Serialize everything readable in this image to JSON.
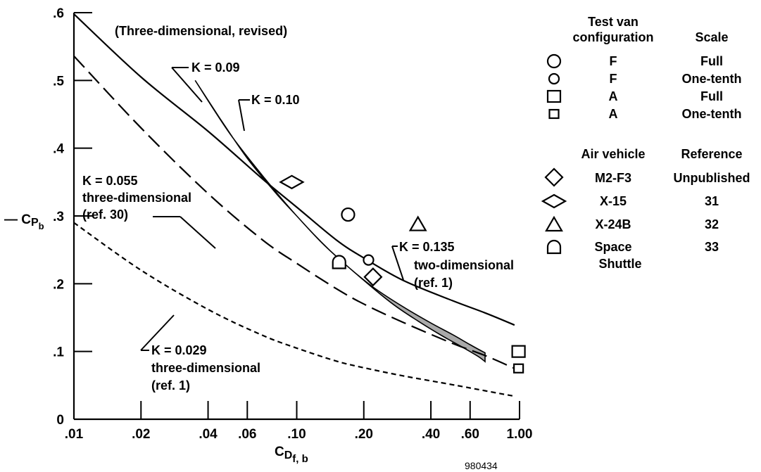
{
  "chart_data": {
    "type": "line",
    "x_scale": "log",
    "xlim": [
      0.01,
      1.0
    ],
    "ylim": [
      0,
      0.6
    ],
    "x_ticks": [
      0.01,
      0.02,
      0.04,
      0.06,
      0.1,
      0.2,
      0.4,
      0.6,
      1.0
    ],
    "x_tick_labels": [
      ".01",
      ".02",
      ".04",
      ".06",
      ".10",
      ".20",
      ".40",
      ".60",
      "1.00"
    ],
    "y_ticks": [
      0,
      0.1,
      0.2,
      0.3,
      0.4,
      0.5,
      0.6
    ],
    "y_tick_labels": [
      "0",
      ".1",
      ".2",
      ".3",
      ".4",
      ".5",
      ".6"
    ],
    "ylabel": {
      "prefix": "— C",
      "sub": "P",
      "subsub": "b"
    },
    "xlabel": {
      "main": "C",
      "sub": "D",
      "subsub": "f, b"
    },
    "series": [
      {
        "style": "solid",
        "x": [
          0.01,
          0.02,
          0.04,
          0.07,
          0.1,
          0.15,
          0.2,
          0.3,
          0.5,
          0.7,
          0.95
        ],
        "y": [
          0.598,
          0.505,
          0.425,
          0.355,
          0.313,
          0.265,
          0.238,
          0.205,
          0.175,
          0.157,
          0.139
        ]
      },
      {
        "style": "long-dash",
        "x": [
          0.01,
          0.02,
          0.04,
          0.07,
          0.1,
          0.15,
          0.2,
          0.3,
          0.5,
          0.7,
          0.95
        ],
        "y": [
          0.536,
          0.43,
          0.333,
          0.265,
          0.23,
          0.193,
          0.17,
          0.143,
          0.112,
          0.094,
          0.075
        ]
      },
      {
        "style": "short-dash",
        "x": [
          0.01,
          0.02,
          0.04,
          0.07,
          0.1,
          0.15,
          0.2,
          0.3,
          0.5,
          0.7,
          0.95
        ],
        "y": [
          0.29,
          0.22,
          0.162,
          0.124,
          0.105,
          0.086,
          0.076,
          0.064,
          0.051,
          0.042,
          0.034
        ]
      }
    ],
    "band": {
      "upper": {
        "x": [
          0.045,
          0.06,
          0.08,
          0.1,
          0.13,
          0.17,
          0.22,
          0.3,
          0.4,
          0.5,
          0.6,
          0.7
        ],
        "y": [
          0.445,
          0.385,
          0.335,
          0.3,
          0.26,
          0.225,
          0.195,
          0.166,
          0.142,
          0.125,
          0.11,
          0.098
        ]
      },
      "lower": {
        "x": [
          0.035,
          0.05,
          0.07,
          0.1,
          0.14,
          0.2,
          0.27,
          0.35,
          0.45,
          0.55,
          0.65,
          0.7
        ],
        "y": [
          0.5,
          0.422,
          0.36,
          0.3,
          0.25,
          0.205,
          0.17,
          0.145,
          0.123,
          0.107,
          0.093,
          0.085
        ]
      },
      "top_cap": {
        "x": [
          0.035,
          0.045
        ],
        "y": [
          0.5,
          0.5
        ]
      }
    },
    "points": [
      {
        "marker": "circle-large",
        "x": 0.17,
        "y": 0.302
      },
      {
        "marker": "circle-small",
        "x": 0.21,
        "y": 0.235
      },
      {
        "marker": "square-large",
        "x": 0.99,
        "y": 0.1
      },
      {
        "marker": "square-small",
        "x": 0.99,
        "y": 0.075
      },
      {
        "marker": "diamond-small",
        "x": 0.22,
        "y": 0.21
      },
      {
        "marker": "diamond-wide",
        "x": 0.095,
        "y": 0.35
      },
      {
        "marker": "triangle",
        "x": 0.35,
        "y": 0.288
      },
      {
        "marker": "dome",
        "x": 0.155,
        "y": 0.232
      }
    ],
    "annotations": {
      "header": "(Three-dimensional, revised)",
      "k009": "K = 0.09",
      "k010": "K = 0.10",
      "k0135": "K = 0.135",
      "k0135_l2": "two-dimensional",
      "k0135_l3": "(ref. 1)",
      "k0055": "K = 0.055",
      "k0055_l2": "three-dimensional",
      "k0055_l3": "(ref. 30)",
      "k0029": "K = 0.029",
      "k0029_l2": "three-dimensional",
      "k0029_l3": "(ref. 1)",
      "figure_id": "980434"
    }
  },
  "legend": {
    "test_van": {
      "header_line1": "Test van",
      "header_line2": "configuration",
      "header_scale": "Scale",
      "rows": [
        {
          "marker": "circle-large",
          "config": "F",
          "scale": "Full"
        },
        {
          "marker": "circle-small",
          "config": "F",
          "scale": "One-tenth"
        },
        {
          "marker": "square-large",
          "config": "A",
          "scale": "Full"
        },
        {
          "marker": "square-small",
          "config": "A",
          "scale": "One-tenth"
        }
      ]
    },
    "air_vehicle": {
      "header_vehicle": "Air vehicle",
      "header_reference": "Reference",
      "rows": [
        {
          "marker": "diamond-small",
          "vehicle": "M2-F3",
          "reference": "Unpublished"
        },
        {
          "marker": "diamond-wide",
          "vehicle": "X-15",
          "reference": "31"
        },
        {
          "marker": "triangle",
          "vehicle": "X-24B",
          "reference": "32"
        },
        {
          "marker": "dome",
          "vehicle": "Space",
          "vehicle_line2": "Shuttle",
          "reference": "33"
        }
      ]
    }
  }
}
